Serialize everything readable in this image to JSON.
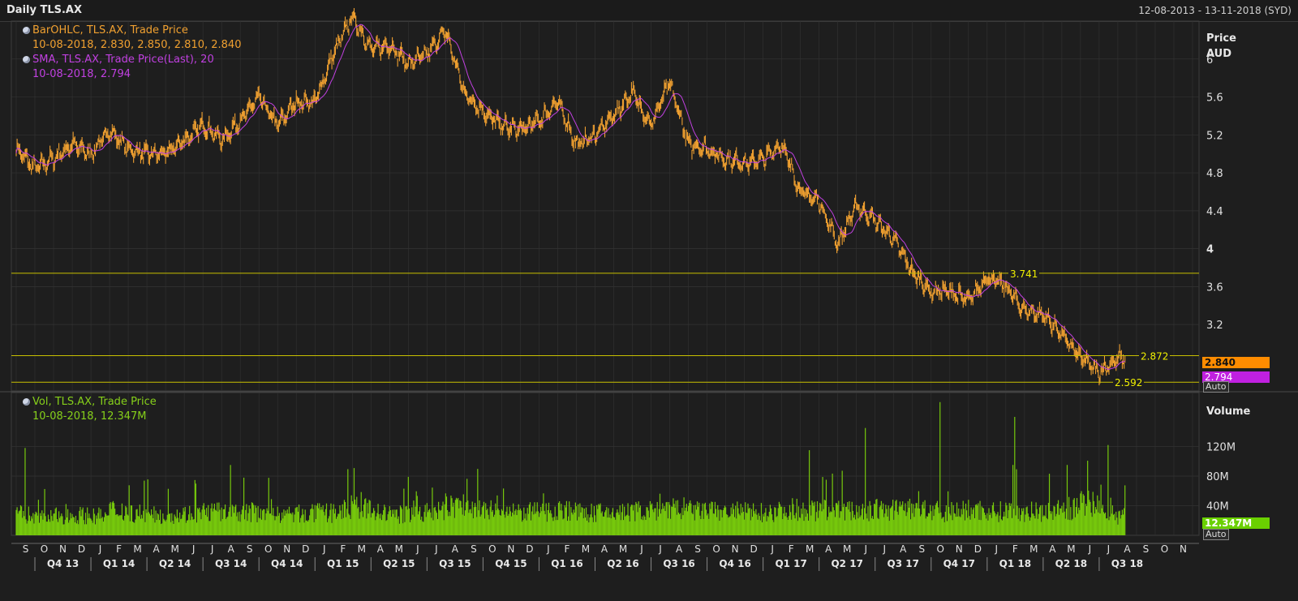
{
  "window": {
    "title": "Daily TLS.AX",
    "date_range": "12-08-2013 - 13-11-2018 (SYD)"
  },
  "price_legend": {
    "line1": "BarOHLC, TLS.AX, Trade Price",
    "line2": "10-08-2018, 2.830, 2.850, 2.810, 2.840",
    "line3": "SMA, TLS.AX, Trade Price(Last),  20",
    "line4": "10-08-2018, 2.794"
  },
  "volume_legend": {
    "line1": "Vol, TLS.AX, Trade Price",
    "line2": "10-08-2018, 12.347M"
  },
  "price_axis": {
    "title_line1": "Price",
    "title_line2": "AUD"
  },
  "volume_axis": {
    "title": "Volume"
  },
  "tags": {
    "last_price": "2.840",
    "sma": "2.794",
    "volume": "12.347M",
    "auto": "Auto"
  },
  "colors": {
    "bars": "#f0a030",
    "sma": "#c040e0",
    "volume": "#76c80c",
    "hline": "#c8c000",
    "background": "#1e1e1e",
    "grid": "#333333"
  },
  "chart_data": [
    {
      "type": "line",
      "title": "Daily TLS.AX",
      "ylabel": "Price AUD",
      "ylim": [
        2.5,
        6.4
      ],
      "yticks": [
        3.2,
        3.6,
        4,
        4.4,
        4.8,
        5.2,
        5.6,
        6
      ],
      "grid": true,
      "legend": "top-left",
      "x_month_labels": [
        "S",
        "O",
        "N",
        "D",
        "J",
        "F",
        "M",
        "A",
        "M",
        "J",
        "J",
        "A",
        "S",
        "O",
        "N",
        "D",
        "J",
        "F",
        "M",
        "A",
        "M",
        "J",
        "J",
        "A",
        "S",
        "O",
        "N",
        "D",
        "J",
        "F",
        "M",
        "A",
        "M",
        "J",
        "J",
        "A",
        "S",
        "O",
        "N",
        "D",
        "J",
        "F",
        "M",
        "A",
        "M",
        "J",
        "J",
        "A",
        "S",
        "O",
        "N",
        "D",
        "J",
        "F",
        "M",
        "A",
        "M",
        "J",
        "J",
        "A",
        "S",
        "O",
        "N"
      ],
      "x_quarter_labels": [
        "Q4 13",
        "Q1 14",
        "Q2 14",
        "Q3 14",
        "Q4 14",
        "Q1 15",
        "Q2 15",
        "Q3 15",
        "Q4 15",
        "Q1 16",
        "Q2 16",
        "Q3 16",
        "Q4 16",
        "Q1 17",
        "Q2 17",
        "Q3 17",
        "Q4 17",
        "Q1 18",
        "Q2 18",
        "Q3 18"
      ],
      "series": [
        {
          "name": "BarOHLC, TLS.AX, Trade Price",
          "monthly_close": [
            5.05,
            4.85,
            4.95,
            5.1,
            5.0,
            5.25,
            5.05,
            5.0,
            5.0,
            5.15,
            5.3,
            5.15,
            5.35,
            5.6,
            5.3,
            5.55,
            5.55,
            6.05,
            6.45,
            6.1,
            6.15,
            5.95,
            6.05,
            6.3,
            5.65,
            5.45,
            5.3,
            5.25,
            5.35,
            5.55,
            5.1,
            5.2,
            5.4,
            5.65,
            5.3,
            5.75,
            5.1,
            5.05,
            4.95,
            4.9,
            4.95,
            5.1,
            4.6,
            4.5,
            4.05,
            4.45,
            4.3,
            4.1,
            3.75,
            3.55,
            3.55,
            3.45,
            3.7,
            3.6,
            3.35,
            3.3,
            3.1,
            2.85,
            2.7,
            2.84
          ],
          "annotations": [
            {
              "label": "3.741",
              "value": 3.741
            },
            {
              "label": "2.872",
              "value": 2.872
            },
            {
              "label": "2.592",
              "value": 2.592
            }
          ]
        },
        {
          "name": "SMA, TLS.AX, Trade Price(Last),  20",
          "last_value": 2.794
        }
      ]
    },
    {
      "type": "bar",
      "title": "Volume",
      "ylim": [
        0,
        160
      ],
      "yticks_labels": [
        "40M",
        "80M",
        "120M"
      ],
      "yticks": [
        40,
        80,
        120
      ],
      "series": [
        {
          "name": "Vol, TLS.AX, Trade Price",
          "unit": "M",
          "monthly_avg": [
            28,
            24,
            26,
            27,
            26,
            34,
            30,
            27,
            28,
            29,
            32,
            29,
            31,
            34,
            28,
            29,
            30,
            33,
            36,
            30,
            28,
            29,
            32,
            40,
            36,
            33,
            30,
            31,
            33,
            34,
            30,
            30,
            31,
            33,
            32,
            36,
            33,
            32,
            32,
            31,
            32,
            35,
            34,
            36,
            33,
            34,
            34,
            36,
            34,
            32,
            33,
            34,
            32,
            34,
            32,
            34,
            36,
            42,
            36,
            26
          ],
          "spikes": [
            {
              "month_index": 0,
              "value": 118
            },
            {
              "month_index": 11,
              "value": 95
            },
            {
              "month_index": 42,
              "value": 115
            },
            {
              "month_index": 45,
              "value": 145
            },
            {
              "month_index": 49,
              "value": 182
            },
            {
              "month_index": 53,
              "value": 160
            },
            {
              "month_index": 58,
              "value": 122
            }
          ],
          "last_value": 12.347
        }
      ]
    }
  ]
}
